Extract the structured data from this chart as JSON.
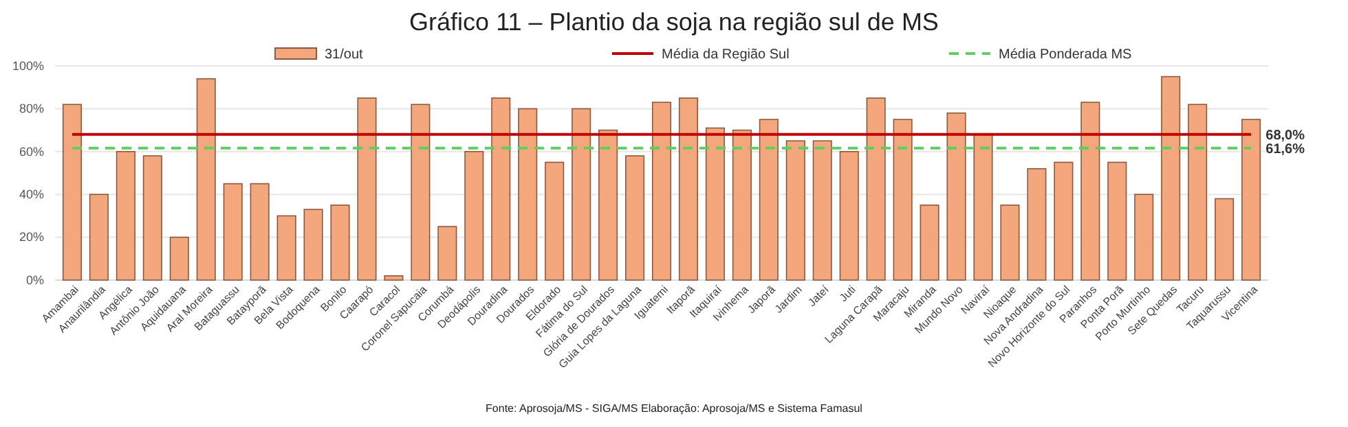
{
  "chart_data": {
    "type": "bar",
    "title": "Gráfico 11 – Plantio da soja na região sul de MS",
    "categories": [
      "Amambai",
      "Anaurilândia",
      "Angélica",
      "Antônio João",
      "Aquidauana",
      "Aral Moreira",
      "Bataguassu",
      "Batayporã",
      "Bela Vista",
      "Bodoquena",
      "Bonito",
      "Caarapó",
      "Caracol",
      "Coronel Sapucaia",
      "Corumbá",
      "Deodápolis",
      "Douradina",
      "Dourados",
      "Eldorado",
      "Fátima do Sul",
      "Glória de Dourados",
      "Guia Lopes da Laguna",
      "Iguatemi",
      "Itaporã",
      "Itaquiraí",
      "Ivinhema",
      "Japorã",
      "Jardim",
      "Jateí",
      "Juti",
      "Laguna Carapã",
      "Maracaju",
      "Miranda",
      "Mundo Novo",
      "Naviraí",
      "Nioaque",
      "Nova Andradina",
      "Novo Horizonte do Sul",
      "Paranhos",
      "Ponta Porã",
      "Porto Murtinho",
      "Sete Quedas",
      "Tacuru",
      "Taquarussu",
      "Vicentina"
    ],
    "series": [
      {
        "name": "31/out",
        "color": "#f4a67c",
        "values": [
          82,
          40,
          60,
          58,
          20,
          94,
          45,
          45,
          30,
          33,
          35,
          85,
          2,
          82,
          25,
          60,
          85,
          80,
          55,
          80,
          70,
          58,
          83,
          85,
          71,
          70,
          75,
          65,
          65,
          60,
          85,
          75,
          35,
          78,
          68,
          35,
          52,
          55,
          83,
          55,
          40,
          95,
          82,
          38,
          75
        ]
      },
      {
        "name": "Média da Região Sul",
        "type": "line",
        "color": "#c00000",
        "line_style": "solid",
        "values": [
          68,
          68,
          68,
          68,
          68,
          68,
          68,
          68,
          68,
          68,
          68,
          68,
          68,
          68,
          68,
          68,
          68,
          68,
          68,
          68,
          68,
          68,
          68,
          68,
          68,
          68,
          68,
          68,
          68,
          68,
          68,
          68,
          68,
          68,
          68,
          68,
          68,
          68,
          68,
          68,
          68,
          68,
          68,
          68,
          68
        ],
        "value_labels": [
          null,
          null,
          null,
          null,
          null,
          null,
          null,
          null,
          null,
          null,
          null,
          null,
          null,
          null,
          null,
          null,
          null,
          null,
          null,
          null,
          null,
          null,
          null,
          null,
          null,
          null,
          null,
          null,
          null,
          null,
          null,
          null,
          null,
          null,
          null,
          null,
          null,
          null,
          null,
          null,
          null,
          null,
          null,
          null,
          "68,0%"
        ]
      },
      {
        "name": "Média Ponderada MS",
        "type": "line",
        "color": "#5ccf5c",
        "line_style": "dashed",
        "values": [
          61.6,
          61.6,
          61.6,
          61.6,
          61.6,
          61.6,
          61.6,
          61.6,
          61.6,
          61.6,
          61.6,
          61.6,
          61.6,
          61.6,
          61.6,
          61.6,
          61.6,
          61.6,
          61.6,
          61.6,
          61.6,
          61.6,
          61.6,
          61.6,
          61.6,
          61.6,
          61.6,
          61.6,
          61.6,
          61.6,
          61.6,
          61.6,
          61.6,
          61.6,
          61.6,
          61.6,
          61.6,
          61.6,
          61.6,
          61.6,
          61.6,
          61.6,
          61.6,
          61.6,
          61.6
        ],
        "value_labels": [
          null,
          null,
          null,
          null,
          null,
          null,
          null,
          null,
          null,
          null,
          null,
          null,
          null,
          null,
          null,
          null,
          null,
          null,
          null,
          null,
          null,
          null,
          null,
          null,
          null,
          null,
          null,
          null,
          null,
          null,
          null,
          null,
          null,
          null,
          null,
          null,
          null,
          null,
          null,
          null,
          null,
          null,
          null,
          null,
          "61,6%"
        ]
      }
    ],
    "ylim": [
      0,
      100
    ],
    "yticks": [
      {
        "value": 0,
        "label": "0%"
      },
      {
        "value": 20,
        "label": "20%"
      },
      {
        "value": 40,
        "label": "40%"
      },
      {
        "value": 60,
        "label": "60%"
      },
      {
        "value": 80,
        "label": "80%"
      },
      {
        "value": 100,
        "label": "100%"
      }
    ],
    "grid": "y",
    "legend": "top",
    "annotations": [
      "Fonte: Aprosoja/MS - SIGA/MS Elaboração: Aprosoja/MS e Sistema Famasul"
    ]
  }
}
